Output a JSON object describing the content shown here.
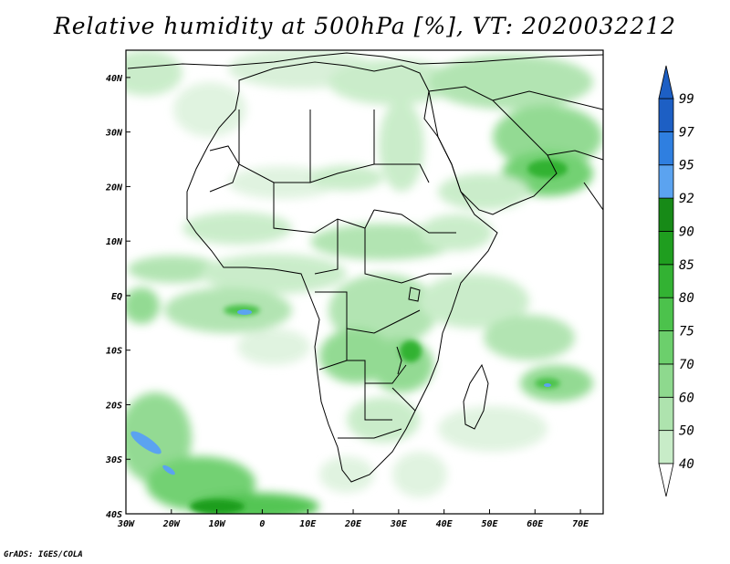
{
  "title": "Relative humidity at 500hPa [%], VT: 2020032212",
  "footer": "GrADS: IGES/COLA",
  "map": {
    "projection": "latlon",
    "lon_range": [
      -30,
      75
    ],
    "lat_range": [
      -40,
      45
    ],
    "x_ticks": [
      {
        "lon": -30,
        "label": "30W"
      },
      {
        "lon": -20,
        "label": "20W"
      },
      {
        "lon": -10,
        "label": "10W"
      },
      {
        "lon": 0,
        "label": "0"
      },
      {
        "lon": 10,
        "label": "10E"
      },
      {
        "lon": 20,
        "label": "20E"
      },
      {
        "lon": 30,
        "label": "30E"
      },
      {
        "lon": 40,
        "label": "40E"
      },
      {
        "lon": 50,
        "label": "50E"
      },
      {
        "lon": 60,
        "label": "60E"
      },
      {
        "lon": 70,
        "label": "70E"
      }
    ],
    "y_ticks": [
      {
        "lat": 40,
        "label": "40N"
      },
      {
        "lat": 30,
        "label": "30N"
      },
      {
        "lat": 20,
        "label": "20N"
      },
      {
        "lat": 10,
        "label": "10N"
      },
      {
        "lat": 0,
        "label": "EQ"
      },
      {
        "lat": -10,
        "label": "10S"
      },
      {
        "lat": -20,
        "label": "20S"
      },
      {
        "lat": -30,
        "label": "30S"
      },
      {
        "lat": -40,
        "label": "40S"
      }
    ]
  },
  "colorbar": {
    "levels": [
      "40",
      "50",
      "60",
      "70",
      "75",
      "80",
      "85",
      "90",
      "92",
      "95",
      "97",
      "99"
    ],
    "colors": [
      "#e6f5e6",
      "#c8ecc8",
      "#aee3ae",
      "#8ed98e",
      "#6ccf6c",
      "#4cc24c",
      "#33b233",
      "#1f9e1f",
      "#178a17",
      "#5ba3f0",
      "#2f7fe0",
      "#1d5fc4"
    ],
    "upper_extend_color": "#1d5fc4",
    "lower_extend_color": "#ffffff"
  }
}
